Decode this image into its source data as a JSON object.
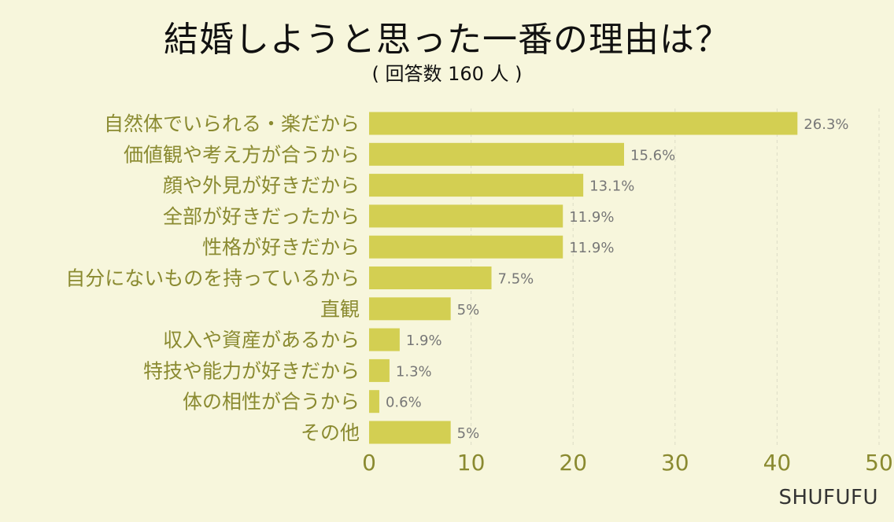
{
  "chart_data": {
    "type": "bar",
    "orientation": "horizontal",
    "title": "結婚しようと思った一番の理由は？",
    "subtitle": "( 回答数 160 人 )",
    "categories": [
      "自然体でいられる・楽だから",
      "価値観や考え方が合うから",
      "顔や外見が好きだから",
      "全部が好きだったから",
      "性格が好きだから",
      "自分にないものを持っているから",
      "直観",
      "収入や資産があるから",
      "特技や能力が好きだから",
      "体の相性が合うから",
      "その他"
    ],
    "values": [
      42,
      25,
      21,
      19,
      19,
      12,
      8,
      3,
      2,
      1,
      8
    ],
    "data_labels": [
      "26.3%",
      "15.6%",
      "13.1%",
      "11.9%",
      "11.9%",
      "7.5%",
      "5%",
      "1.9%",
      "1.3%",
      "0.6%",
      "5%"
    ],
    "xlim": [
      0,
      50
    ],
    "xticks": [
      0,
      10,
      20,
      30,
      40,
      50
    ],
    "xlabel": "",
    "ylabel": "",
    "grid": "vertical dashed",
    "colors": {
      "bar": "#d3cf52",
      "axis_text": "#8a8a30",
      "category_text": "#8a8a30",
      "label_text": "#777777",
      "title_text": "#111111",
      "background": "#f7f6dc",
      "grid": "#dcdcc6"
    }
  },
  "watermark": "SHUFUFU"
}
